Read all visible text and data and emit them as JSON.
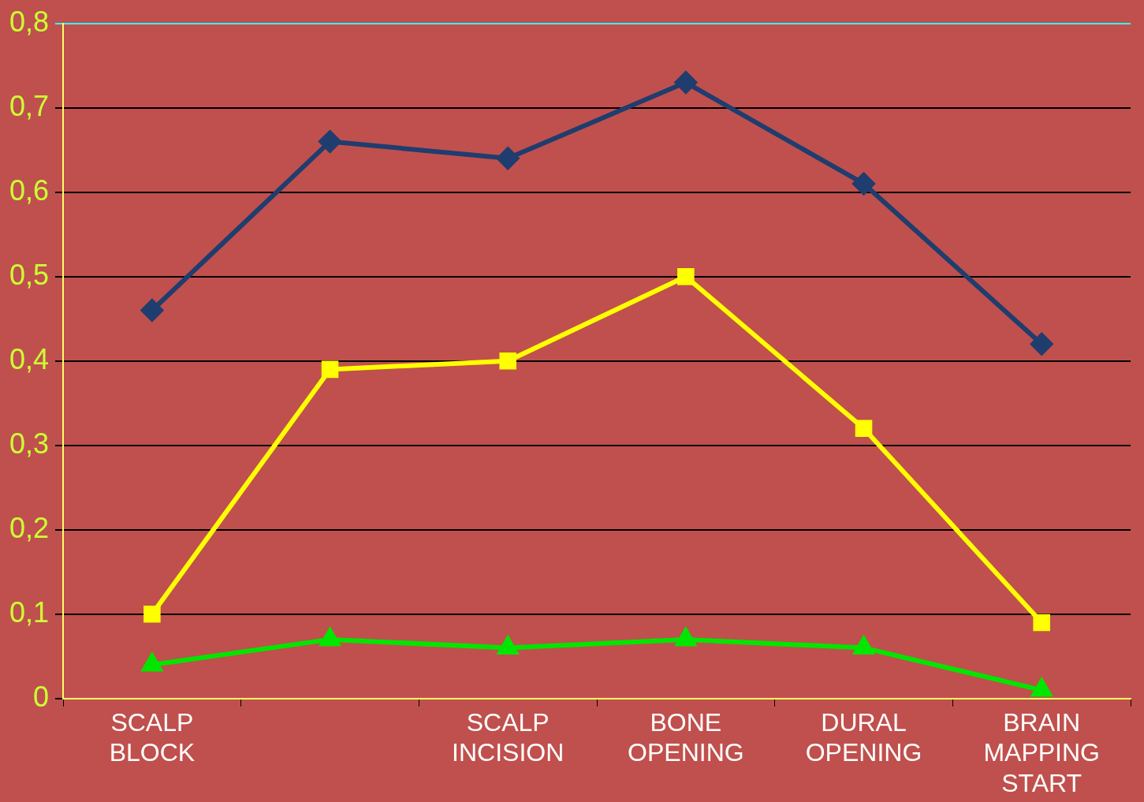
{
  "chart_data": {
    "type": "line",
    "categories": [
      "SCALP BLOCK",
      null,
      "SCALP INCISION",
      "BONE OPENING",
      "DURAL OPENING",
      "BRAIN MAPPING START"
    ],
    "series": [
      {
        "color": "#1f3d6e",
        "marker": "diamond",
        "values": [
          0.46,
          0.66,
          0.64,
          0.73,
          0.61,
          0.42
        ]
      },
      {
        "color": "#ffff00",
        "marker": "square",
        "values": [
          0.1,
          0.39,
          0.4,
          0.5,
          0.32,
          0.09
        ]
      },
      {
        "color": "#00e600",
        "marker": "triangle",
        "values": [
          0.04,
          0.07,
          0.06,
          0.07,
          0.06,
          0.01
        ]
      }
    ],
    "ylim": [
      0,
      0.8
    ],
    "yticks": [
      0,
      {
        "value": 0.1,
        "label": "0,1"
      },
      {
        "value": 0.2,
        "label": "0,2"
      },
      {
        "value": 0.3,
        "label": "0,3"
      },
      {
        "value": 0.4,
        "label": "0,4"
      },
      {
        "value": 0.5,
        "label": "0,5"
      },
      {
        "value": 0.6,
        "label": "0,6"
      },
      {
        "value": 0.7,
        "label": "0,7"
      },
      {
        "value": 0.8,
        "label": "0,8"
      }
    ],
    "grid": "y",
    "legend": false,
    "line_style": "solid"
  }
}
